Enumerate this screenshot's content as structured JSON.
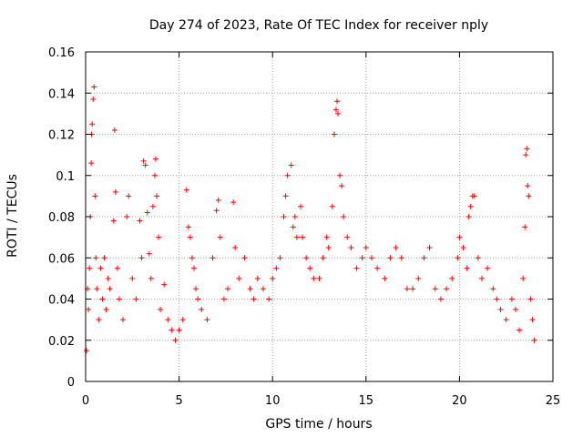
{
  "chart_data": {
    "type": "scatter",
    "title": "Day 274 of 2023, Rate Of TEC Index for receiver nply",
    "xlabel": "GPS time / hours",
    "ylabel": "ROTI / TECUs",
    "xlim": [
      0,
      25
    ],
    "ylim": [
      0,
      0.16
    ],
    "x_ticks": [
      0,
      5,
      10,
      15,
      20,
      25
    ],
    "x_tick_labels": [
      "0",
      "5",
      "10",
      "15",
      "20",
      "25"
    ],
    "y_ticks": [
      0,
      0.02,
      0.04,
      0.06,
      0.08,
      0.1,
      0.12,
      0.14,
      0.16
    ],
    "y_tick_labels": [
      "0",
      "0.02",
      "0.04",
      "0.06",
      "0.08",
      "0.1",
      "0.12",
      "0.14",
      "0.16"
    ],
    "grid": true,
    "marker": "plus",
    "color": "#ff0000",
    "series": [
      {
        "points": [
          [
            0.05,
            0.015
          ],
          [
            0.1,
            0.045
          ],
          [
            0.15,
            0.035
          ],
          [
            0.2,
            0.055
          ],
          [
            0.25,
            0.08
          ],
          [
            0.3,
            0.106
          ],
          [
            0.32,
            0.12
          ],
          [
            0.35,
            0.125
          ],
          [
            0.4,
            0.137
          ],
          [
            0.45,
            0.143
          ],
          [
            0.5,
            0.09
          ],
          [
            0.55,
            0.06
          ],
          [
            0.6,
            0.045
          ],
          [
            0.7,
            0.03
          ],
          [
            0.8,
            0.055
          ],
          [
            0.9,
            0.04
          ],
          [
            1.0,
            0.06
          ],
          [
            1.1,
            0.035
          ],
          [
            1.2,
            0.05
          ],
          [
            1.3,
            0.045
          ],
          [
            1.5,
            0.078
          ],
          [
            1.55,
            0.122
          ],
          [
            1.6,
            0.092
          ],
          [
            1.7,
            0.055
          ],
          [
            1.8,
            0.04
          ],
          [
            2.0,
            0.03
          ],
          [
            2.2,
            0.08
          ],
          [
            2.3,
            0.09
          ],
          [
            2.5,
            0.05
          ],
          [
            2.7,
            0.04
          ],
          [
            2.9,
            0.078
          ],
          [
            3.0,
            0.06
          ],
          [
            3.1,
            0.107
          ],
          [
            3.2,
            0.105
          ],
          [
            3.3,
            0.082
          ],
          [
            3.4,
            0.062
          ],
          [
            3.5,
            0.05
          ],
          [
            3.6,
            0.085
          ],
          [
            3.7,
            0.1
          ],
          [
            3.75,
            0.108
          ],
          [
            3.8,
            0.09
          ],
          [
            3.9,
            0.07
          ],
          [
            4.0,
            0.035
          ],
          [
            4.2,
            0.047
          ],
          [
            4.4,
            0.03
          ],
          [
            4.6,
            0.025
          ],
          [
            4.8,
            0.02
          ],
          [
            5.0,
            0.025
          ],
          [
            5.2,
            0.03
          ],
          [
            5.4,
            0.093
          ],
          [
            5.5,
            0.075
          ],
          [
            5.6,
            0.07
          ],
          [
            5.7,
            0.06
          ],
          [
            5.8,
            0.055
          ],
          [
            5.9,
            0.045
          ],
          [
            6.0,
            0.04
          ],
          [
            6.2,
            0.035
          ],
          [
            6.5,
            0.03
          ],
          [
            6.8,
            0.06
          ],
          [
            7.0,
            0.083
          ],
          [
            7.1,
            0.088
          ],
          [
            7.2,
            0.07
          ],
          [
            7.4,
            0.04
          ],
          [
            7.6,
            0.045
          ],
          [
            7.9,
            0.087
          ],
          [
            8.0,
            0.065
          ],
          [
            8.2,
            0.05
          ],
          [
            8.5,
            0.06
          ],
          [
            8.8,
            0.045
          ],
          [
            9.0,
            0.04
          ],
          [
            9.2,
            0.05
          ],
          [
            9.5,
            0.045
          ],
          [
            9.8,
            0.04
          ],
          [
            10.0,
            0.05
          ],
          [
            10.2,
            0.055
          ],
          [
            10.4,
            0.06
          ],
          [
            10.6,
            0.08
          ],
          [
            10.7,
            0.09
          ],
          [
            10.8,
            0.1
          ],
          [
            11.0,
            0.105
          ],
          [
            11.1,
            0.075
          ],
          [
            11.2,
            0.08
          ],
          [
            11.3,
            0.07
          ],
          [
            11.5,
            0.085
          ],
          [
            11.6,
            0.07
          ],
          [
            11.8,
            0.06
          ],
          [
            12.0,
            0.055
          ],
          [
            12.2,
            0.05
          ],
          [
            12.5,
            0.05
          ],
          [
            12.7,
            0.06
          ],
          [
            12.9,
            0.07
          ],
          [
            13.0,
            0.065
          ],
          [
            13.2,
            0.085
          ],
          [
            13.3,
            0.12
          ],
          [
            13.4,
            0.132
          ],
          [
            13.45,
            0.136
          ],
          [
            13.5,
            0.13
          ],
          [
            13.6,
            0.1
          ],
          [
            13.7,
            0.095
          ],
          [
            13.8,
            0.08
          ],
          [
            14.0,
            0.07
          ],
          [
            14.2,
            0.065
          ],
          [
            14.5,
            0.055
          ],
          [
            14.8,
            0.06
          ],
          [
            15.0,
            0.065
          ],
          [
            15.3,
            0.06
          ],
          [
            15.6,
            0.055
          ],
          [
            16.0,
            0.05
          ],
          [
            16.3,
            0.06
          ],
          [
            16.6,
            0.065
          ],
          [
            16.9,
            0.06
          ],
          [
            17.2,
            0.045
          ],
          [
            17.5,
            0.045
          ],
          [
            17.8,
            0.05
          ],
          [
            18.1,
            0.06
          ],
          [
            18.4,
            0.065
          ],
          [
            18.7,
            0.045
          ],
          [
            19.0,
            0.04
          ],
          [
            19.3,
            0.045
          ],
          [
            19.6,
            0.05
          ],
          [
            19.9,
            0.06
          ],
          [
            20.0,
            0.07
          ],
          [
            20.2,
            0.065
          ],
          [
            20.4,
            0.055
          ],
          [
            20.5,
            0.08
          ],
          [
            20.6,
            0.085
          ],
          [
            20.7,
            0.09
          ],
          [
            20.8,
            0.09
          ],
          [
            21.0,
            0.06
          ],
          [
            21.2,
            0.05
          ],
          [
            21.5,
            0.055
          ],
          [
            21.8,
            0.045
          ],
          [
            22.0,
            0.04
          ],
          [
            22.2,
            0.035
          ],
          [
            22.5,
            0.03
          ],
          [
            22.8,
            0.04
          ],
          [
            23.0,
            0.035
          ],
          [
            23.2,
            0.025
          ],
          [
            23.4,
            0.05
          ],
          [
            23.5,
            0.075
          ],
          [
            23.55,
            0.11
          ],
          [
            23.6,
            0.113
          ],
          [
            23.65,
            0.095
          ],
          [
            23.7,
            0.09
          ],
          [
            23.8,
            0.04
          ],
          [
            23.9,
            0.03
          ],
          [
            24.0,
            0.02
          ]
        ]
      }
    ]
  }
}
